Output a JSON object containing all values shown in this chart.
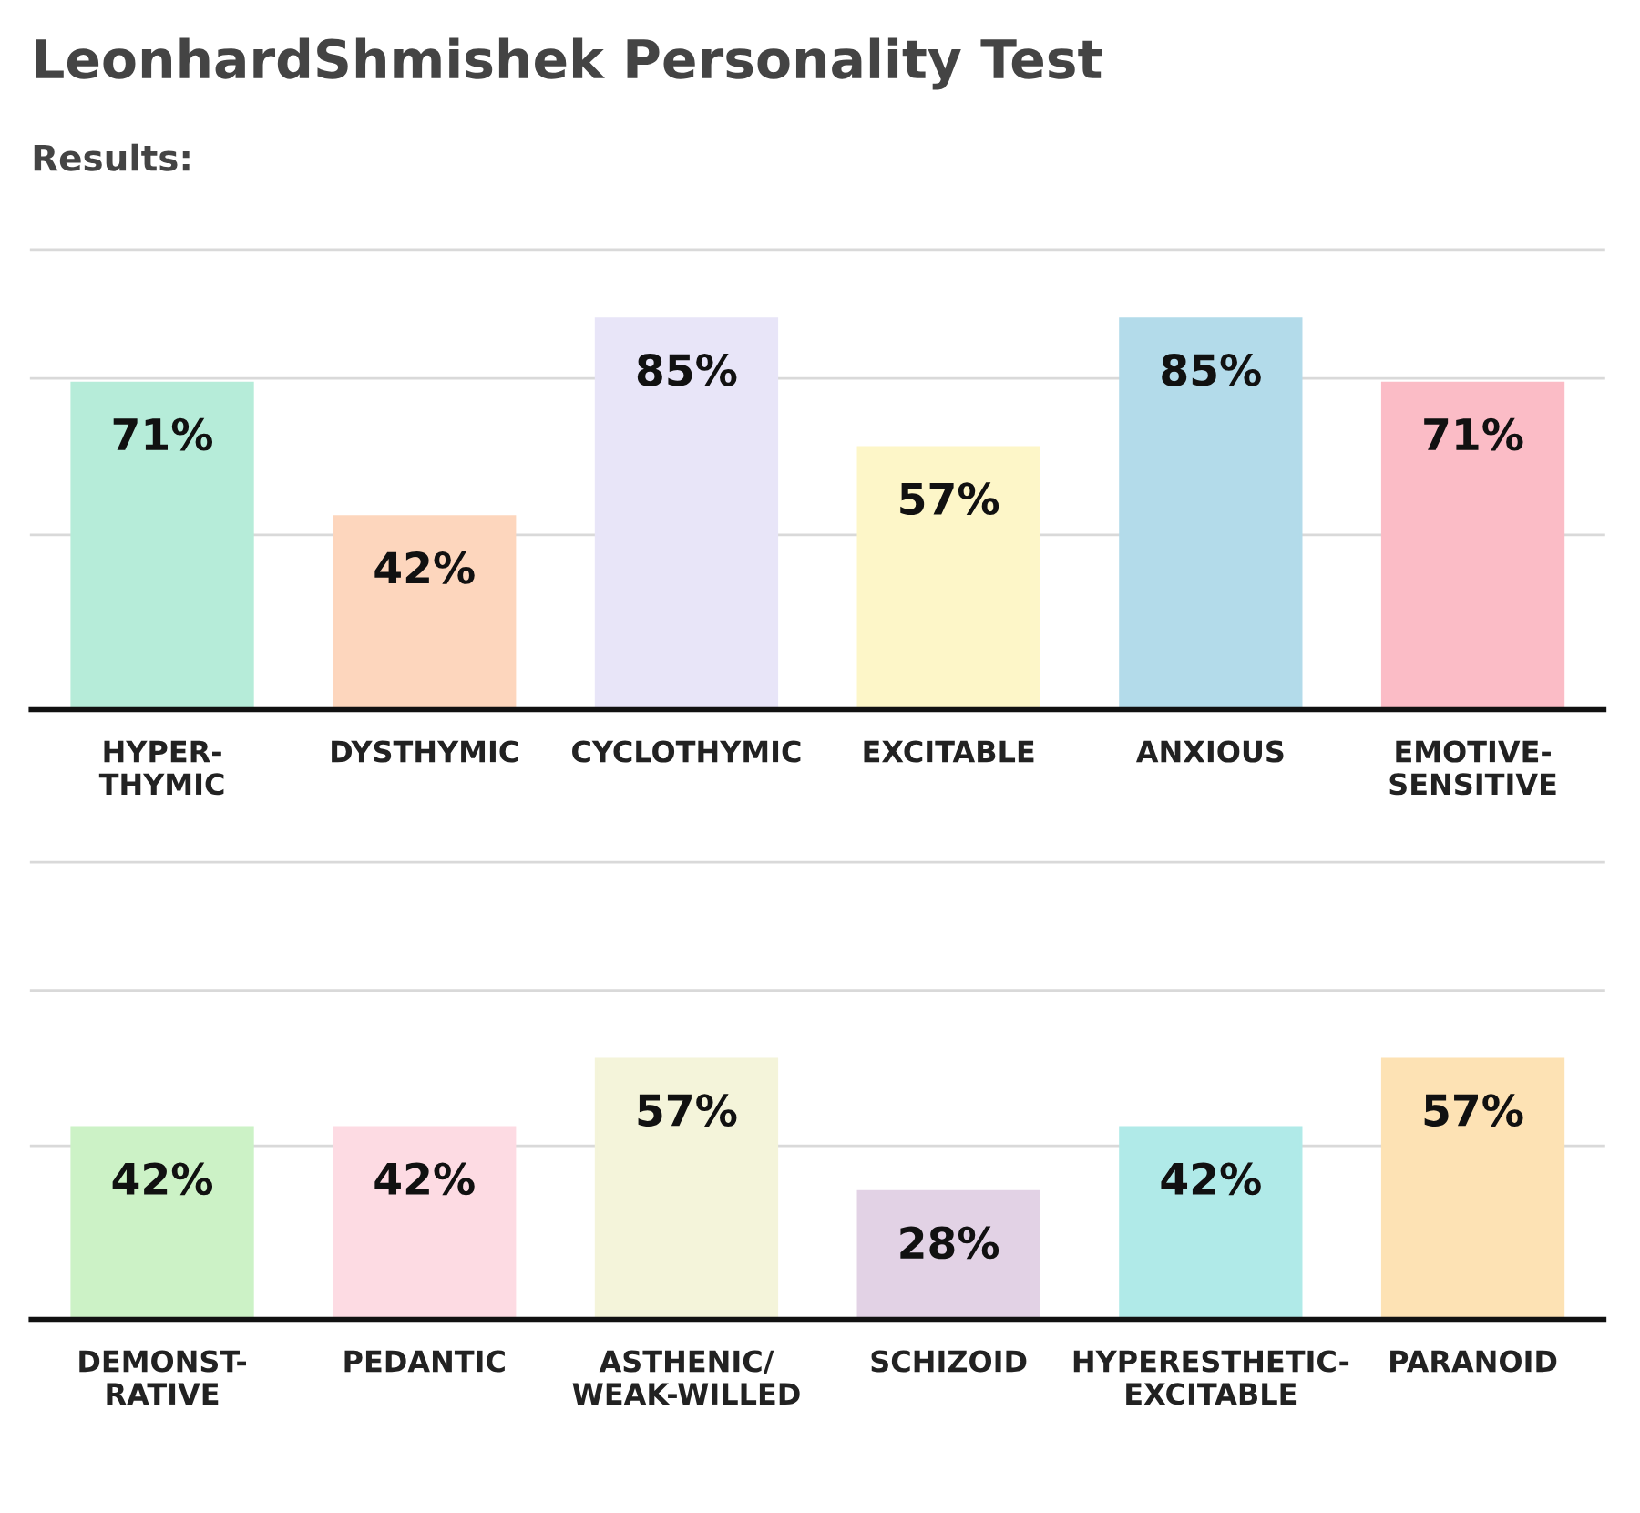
{
  "chart_data": [
    {
      "type": "bar",
      "title": "LeonhardShmishek Personality Test",
      "subtitle": "Results:",
      "relative": false,
      "categories": [
        "HYPER-\nTHYMIC",
        "DYSTHYMIC",
        "CYCLOTHYMIC",
        "EXCITABLE",
        "ANXIOUS",
        "EMOTIVE-\nSENSITIVE"
      ],
      "values": [
        71,
        42,
        85,
        57,
        85,
        71
      ],
      "value_labels": [
        "71%",
        "42%",
        "85%",
        "57%",
        "85%",
        "71%"
      ],
      "colors": [
        "#b6ecd9",
        "#fdd6bd",
        "#e8e5f8",
        "#fdf6c8",
        "#b3dbea",
        "#fbbcc6"
      ],
      "ylim": [
        0,
        100
      ],
      "ref_lines": [
        {
          "axis": "y",
          "value": 38,
          "color": "#d9d9d9"
        },
        {
          "axis": "y",
          "value": 72,
          "color": "#d9d9d9"
        },
        {
          "axis": "y",
          "value": 100,
          "color": "#d9d9d9"
        }
      ],
      "tick_labels": "x"
    },
    {
      "type": "bar",
      "categories": [
        "DEMONST-\nRATIVE",
        "PEDANTIC",
        "ASTHENIC/\nWEAK-WILLED",
        "SCHIZOID",
        "HYPERESTHETIC-\nEXCITABLE",
        "PARANOID"
      ],
      "values": [
        42,
        42,
        57,
        28,
        42,
        57
      ],
      "value_labels": [
        "42%",
        "42%",
        "57%",
        "28%",
        "42%",
        "57%"
      ],
      "colors": [
        "#ccf2c6",
        "#fddbe3",
        "#f4f4da",
        "#e2d2e5",
        "#b0eae8",
        "#fde2b4"
      ],
      "ylim": [
        0,
        100
      ],
      "ref_lines": [
        {
          "axis": "y",
          "value": 38,
          "color": "#d9d9d9"
        },
        {
          "axis": "y",
          "value": 72,
          "color": "#d9d9d9"
        },
        {
          "axis": "y",
          "value": 100,
          "color": "#d9d9d9"
        }
      ],
      "tick_labels": "x"
    }
  ]
}
